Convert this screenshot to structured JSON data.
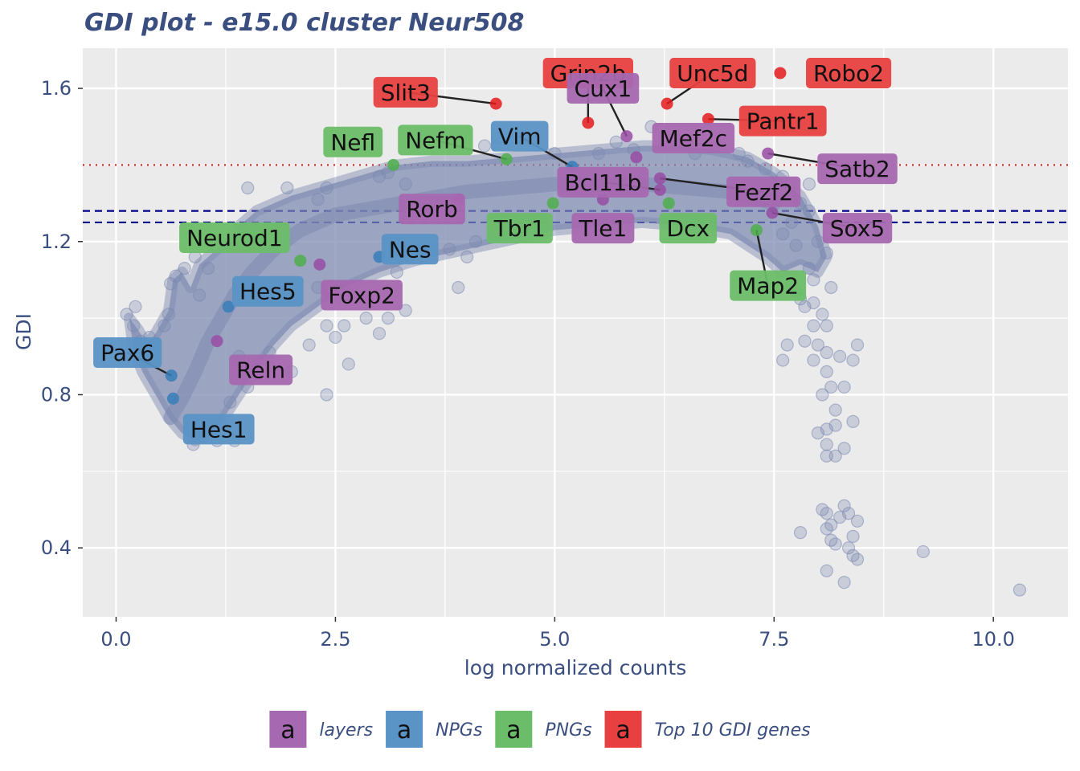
{
  "chart_data": {
    "type": "scatter",
    "title": "GDI plot - e15.0 cluster Neur508",
    "xlabel": "log normalized counts",
    "ylabel": "GDI",
    "xlim": [
      -0.38,
      10.85
    ],
    "ylim": [
      0.22,
      1.705
    ],
    "x_ticks": [
      {
        "value": 0,
        "label": "0.0"
      },
      {
        "value": 2.5,
        "label": "2.5"
      },
      {
        "value": 5,
        "label": "5.0"
      },
      {
        "value": 7.5,
        "label": "7.5"
      },
      {
        "value": 10,
        "label": "10.0"
      }
    ],
    "y_ticks": [
      {
        "value": 0.4,
        "label": "0.4"
      },
      {
        "value": 0.8,
        "label": "0.8"
      },
      {
        "value": 1.2,
        "label": "1.2"
      },
      {
        "value": 1.6,
        "label": "1.6"
      }
    ],
    "grid": true,
    "background": "#ebebeb",
    "reference_lines": [
      {
        "y": 1.4,
        "style": "dotted",
        "color": "#e41a1c"
      },
      {
        "y": 1.28,
        "style": "dashed",
        "color": "#00008b"
      },
      {
        "y": 1.25,
        "style": "dashed",
        "color": "#00008b"
      }
    ],
    "background_points": {
      "color": "#7b88b0",
      "outline": [
        [
          0.15,
          1.0
        ],
        [
          0.25,
          0.97
        ],
        [
          0.35,
          0.93
        ],
        [
          0.45,
          0.96
        ],
        [
          0.6,
          1.02
        ],
        [
          0.65,
          1.1
        ],
        [
          0.75,
          1.12
        ],
        [
          0.85,
          1.08
        ],
        [
          0.95,
          1.14
        ],
        [
          1.1,
          1.17
        ],
        [
          1.25,
          1.2
        ],
        [
          1.4,
          1.24
        ],
        [
          1.6,
          1.28
        ],
        [
          1.8,
          1.3
        ],
        [
          2.0,
          1.32
        ],
        [
          2.3,
          1.34
        ],
        [
          2.6,
          1.36
        ],
        [
          2.9,
          1.38
        ],
        [
          3.2,
          1.4
        ],
        [
          3.6,
          1.41
        ],
        [
          4.0,
          1.41
        ],
        [
          4.5,
          1.42
        ],
        [
          5.0,
          1.43
        ],
        [
          5.5,
          1.44
        ],
        [
          6.0,
          1.45
        ],
        [
          6.4,
          1.45
        ],
        [
          6.8,
          1.44
        ],
        [
          7.2,
          1.42
        ],
        [
          7.5,
          1.38
        ],
        [
          7.8,
          1.32
        ],
        [
          8.0,
          1.24
        ],
        [
          8.1,
          1.16
        ],
        [
          8.0,
          1.12
        ],
        [
          7.8,
          1.14
        ],
        [
          7.6,
          1.12
        ],
        [
          7.4,
          1.16
        ],
        [
          7.2,
          1.19
        ],
        [
          7.0,
          1.22
        ],
        [
          6.5,
          1.24
        ],
        [
          6.0,
          1.25
        ],
        [
          5.5,
          1.24
        ],
        [
          5.0,
          1.23
        ],
        [
          4.6,
          1.21
        ],
        [
          4.2,
          1.19
        ],
        [
          3.8,
          1.17
        ],
        [
          3.4,
          1.15
        ],
        [
          3.0,
          1.12
        ],
        [
          2.6,
          1.08
        ],
        [
          2.3,
          1.03
        ],
        [
          2.0,
          0.98
        ],
        [
          1.8,
          0.93
        ],
        [
          1.6,
          0.87
        ],
        [
          1.4,
          0.8
        ],
        [
          1.2,
          0.73
        ],
        [
          1.0,
          0.69
        ],
        [
          0.9,
          0.68
        ],
        [
          0.75,
          0.7
        ],
        [
          0.6,
          0.74
        ],
        [
          0.45,
          0.8
        ],
        [
          0.3,
          0.86
        ],
        [
          0.2,
          0.92
        ]
      ],
      "band": [
        [
          0.62,
          0.74
        ],
        [
          0.75,
          0.79
        ],
        [
          0.9,
          0.86
        ],
        [
          1.05,
          0.94
        ],
        [
          1.2,
          1.0
        ],
        [
          1.35,
          1.06
        ],
        [
          1.55,
          1.12
        ],
        [
          1.8,
          1.18
        ],
        [
          2.1,
          1.23
        ],
        [
          2.5,
          1.27
        ],
        [
          3.0,
          1.29
        ],
        [
          3.5,
          1.31
        ],
        [
          4.0,
          1.33
        ],
        [
          4.5,
          1.34
        ],
        [
          5.0,
          1.35
        ],
        [
          5.5,
          1.35
        ],
        [
          6.0,
          1.35
        ],
        [
          6.5,
          1.34
        ],
        [
          7.0,
          1.33
        ],
        [
          7.5,
          1.3
        ]
      ],
      "points": [
        [
          0.12,
          1.01
        ],
        [
          0.22,
          1.03
        ],
        [
          0.2,
          0.98
        ],
        [
          0.28,
          0.94
        ],
        [
          0.38,
          0.95
        ],
        [
          0.55,
          0.98
        ],
        [
          0.6,
          1.01
        ],
        [
          0.62,
          1.09
        ],
        [
          0.68,
          1.11
        ],
        [
          0.78,
          1.13
        ],
        [
          0.9,
          1.16
        ],
        [
          0.95,
          1.06
        ],
        [
          1.05,
          1.13
        ],
        [
          1.1,
          1.19
        ],
        [
          1.0,
          0.69
        ],
        [
          0.88,
          0.67
        ],
        [
          1.15,
          0.68
        ],
        [
          1.35,
          0.68
        ],
        [
          0.95,
          0.73
        ],
        [
          1.3,
          0.78
        ],
        [
          1.5,
          0.82
        ],
        [
          1.6,
          0.86
        ],
        [
          1.75,
          0.91
        ],
        [
          2.0,
          0.86
        ],
        [
          1.4,
          0.9
        ],
        [
          2.2,
          0.93
        ],
        [
          2.4,
          0.8
        ],
        [
          2.5,
          0.95
        ],
        [
          2.65,
          0.88
        ],
        [
          3.0,
          0.96
        ],
        [
          2.85,
          1.0
        ],
        [
          3.1,
          1.0
        ],
        [
          2.6,
          0.98
        ],
        [
          2.4,
          0.98
        ],
        [
          2.5,
          1.05
        ],
        [
          2.3,
          1.08
        ],
        [
          3.3,
          1.02
        ],
        [
          3.9,
          1.08
        ],
        [
          3.2,
          1.12
        ],
        [
          4.0,
          1.16
        ],
        [
          4.1,
          1.2
        ],
        [
          3.8,
          1.18
        ],
        [
          1.5,
          1.34
        ],
        [
          1.95,
          1.34
        ],
        [
          2.4,
          1.34
        ],
        [
          2.3,
          1.31
        ],
        [
          3.0,
          1.37
        ],
        [
          3.1,
          1.38
        ],
        [
          3.3,
          1.35
        ],
        [
          4.35,
          1.47
        ],
        [
          4.2,
          1.45
        ],
        [
          5.0,
          1.43
        ],
        [
          5.5,
          1.43
        ],
        [
          5.7,
          1.46
        ],
        [
          5.9,
          1.44
        ],
        [
          6.1,
          1.5
        ],
        [
          6.3,
          1.46
        ],
        [
          6.6,
          1.43
        ],
        [
          7.1,
          1.43
        ],
        [
          7.2,
          1.41
        ],
        [
          7.4,
          1.39
        ],
        [
          7.6,
          1.37
        ],
        [
          7.9,
          1.35
        ],
        [
          7.8,
          1.3
        ],
        [
          7.9,
          1.28
        ],
        [
          7.7,
          1.25
        ],
        [
          7.6,
          1.22
        ],
        [
          7.75,
          1.19
        ],
        [
          8.0,
          1.2
        ],
        [
          8.1,
          1.17
        ],
        [
          7.9,
          1.13
        ],
        [
          7.95,
          1.1
        ],
        [
          8.15,
          1.08
        ],
        [
          7.7,
          1.09
        ],
        [
          7.75,
          1.07
        ],
        [
          7.8,
          1.05
        ],
        [
          7.85,
          1.03
        ],
        [
          7.95,
          1.04
        ],
        [
          8.05,
          1.01
        ],
        [
          8.1,
          0.98
        ],
        [
          7.95,
          0.98
        ],
        [
          7.85,
          0.94
        ],
        [
          7.65,
          0.93
        ],
        [
          7.6,
          0.89
        ],
        [
          8.0,
          0.93
        ],
        [
          8.1,
          0.91
        ],
        [
          8.25,
          0.9
        ],
        [
          8.45,
          0.93
        ],
        [
          8.4,
          0.89
        ],
        [
          8.1,
          0.86
        ],
        [
          7.95,
          0.89
        ],
        [
          8.15,
          0.82
        ],
        [
          8.05,
          0.8
        ],
        [
          8.3,
          0.82
        ],
        [
          8.2,
          0.76
        ],
        [
          8.4,
          0.73
        ],
        [
          8.1,
          0.71
        ],
        [
          8.2,
          0.72
        ],
        [
          8.0,
          0.7
        ],
        [
          8.1,
          0.67
        ],
        [
          8.3,
          0.66
        ],
        [
          8.2,
          0.64
        ],
        [
          8.1,
          0.64
        ],
        [
          7.8,
          0.44
        ],
        [
          8.05,
          0.5
        ],
        [
          8.1,
          0.49
        ],
        [
          8.15,
          0.46
        ],
        [
          8.25,
          0.48
        ],
        [
          8.35,
          0.49
        ],
        [
          8.3,
          0.51
        ],
        [
          8.45,
          0.47
        ],
        [
          8.1,
          0.45
        ],
        [
          8.15,
          0.42
        ],
        [
          8.2,
          0.41
        ],
        [
          8.4,
          0.43
        ],
        [
          8.35,
          0.4
        ],
        [
          8.1,
          0.34
        ],
        [
          8.4,
          0.38
        ],
        [
          8.45,
          0.37
        ],
        [
          8.3,
          0.31
        ],
        [
          9.2,
          0.39
        ],
        [
          10.3,
          0.29
        ]
      ]
    },
    "highlighted_genes": [
      {
        "gene": "Grin2b",
        "x": 5.38,
        "y": 1.51,
        "group": "Top 10 GDI genes"
      },
      {
        "gene": "Slit3",
        "x": 4.33,
        "y": 1.56,
        "group": "Top 10 GDI genes"
      },
      {
        "gene": "Unc5d",
        "x": 6.28,
        "y": 1.56,
        "group": "Top 10 GDI genes"
      },
      {
        "gene": "Robo2",
        "x": 7.57,
        "y": 1.64,
        "group": "Top 10 GDI genes"
      },
      {
        "gene": "Pantr1",
        "x": 6.75,
        "y": 1.52,
        "group": "Top 10 GDI genes"
      },
      {
        "gene": "Cux1",
        "x": 5.82,
        "y": 1.475,
        "group": "layers"
      },
      {
        "gene": "Mef2c",
        "x": 5.93,
        "y": 1.42,
        "group": "layers"
      },
      {
        "gene": "Satb2",
        "x": 7.43,
        "y": 1.43,
        "group": "layers"
      },
      {
        "gene": "Fezf2",
        "x": 6.2,
        "y": 1.365,
        "group": "layers"
      },
      {
        "gene": "Bcl11b",
        "x": 6.2,
        "y": 1.335,
        "group": "layers"
      },
      {
        "gene": "Tle1",
        "x": 5.55,
        "y": 1.31,
        "group": "layers"
      },
      {
        "gene": "Rorb",
        "x": 3.9,
        "y": 1.31,
        "group": "layers"
      },
      {
        "gene": "Sox5",
        "x": 7.48,
        "y": 1.275,
        "group": "layers"
      },
      {
        "gene": "Foxp2",
        "x": 2.32,
        "y": 1.14,
        "group": "layers"
      },
      {
        "gene": "Reln",
        "x": 1.15,
        "y": 0.94,
        "group": "layers"
      },
      {
        "gene": "Vim",
        "x": 5.2,
        "y": 1.395,
        "group": "NPGs"
      },
      {
        "gene": "Nes",
        "x": 3.0,
        "y": 1.16,
        "group": "NPGs"
      },
      {
        "gene": "Hes5",
        "x": 1.28,
        "y": 1.03,
        "group": "NPGs"
      },
      {
        "gene": "Pax6",
        "x": 0.63,
        "y": 0.85,
        "group": "NPGs"
      },
      {
        "gene": "Hes1",
        "x": 0.65,
        "y": 0.79,
        "group": "NPGs"
      },
      {
        "gene": "Nefl",
        "x": 3.16,
        "y": 1.4,
        "group": "PNGs"
      },
      {
        "gene": "Nefm",
        "x": 4.45,
        "y": 1.415,
        "group": "PNGs"
      },
      {
        "gene": "Tbr1",
        "x": 4.98,
        "y": 1.3,
        "group": "PNGs"
      },
      {
        "gene": "Dcx",
        "x": 6.3,
        "y": 1.3,
        "group": "PNGs"
      },
      {
        "gene": "Neurod1",
        "x": 2.1,
        "y": 1.15,
        "group": "PNGs"
      },
      {
        "gene": "Map2",
        "x": 7.3,
        "y": 1.23,
        "group": "PNGs"
      }
    ],
    "gene_labels": [
      {
        "gene": "Grin2b",
        "lx": 5.38,
        "ly": 1.64,
        "leader": true
      },
      {
        "gene": "Slit3",
        "lx": 3.3,
        "ly": 1.59,
        "leader": true
      },
      {
        "gene": "Unc5d",
        "lx": 6.8,
        "ly": 1.64,
        "leader": true
      },
      {
        "gene": "Robo2",
        "lx": 8.35,
        "ly": 1.64,
        "leader": false
      },
      {
        "gene": "Pantr1",
        "lx": 7.6,
        "ly": 1.515,
        "leader": true
      },
      {
        "gene": "Cux1",
        "lx": 5.55,
        "ly": 1.6,
        "leader": true
      },
      {
        "gene": "Mef2c",
        "lx": 6.58,
        "ly": 1.47,
        "leader": false
      },
      {
        "gene": "Satb2",
        "lx": 8.45,
        "ly": 1.39,
        "leader": true
      },
      {
        "gene": "Fezf2",
        "lx": 7.38,
        "ly": 1.33,
        "leader": true
      },
      {
        "gene": "Bcl11b",
        "lx": 5.55,
        "ly": 1.355,
        "leader": true
      },
      {
        "gene": "Tle1",
        "lx": 5.55,
        "ly": 1.235,
        "leader": false
      },
      {
        "gene": "Rorb",
        "lx": 3.6,
        "ly": 1.285,
        "leader": false
      },
      {
        "gene": "Sox5",
        "lx": 8.45,
        "ly": 1.235,
        "leader": true
      },
      {
        "gene": "Foxp2",
        "lx": 2.8,
        "ly": 1.06,
        "leader": false
      },
      {
        "gene": "Reln",
        "lx": 1.65,
        "ly": 0.865,
        "leader": false
      },
      {
        "gene": "Vim",
        "lx": 4.6,
        "ly": 1.475,
        "leader": true
      },
      {
        "gene": "Nes",
        "lx": 3.35,
        "ly": 1.18,
        "leader": false
      },
      {
        "gene": "Hes5",
        "lx": 1.73,
        "ly": 1.07,
        "leader": false
      },
      {
        "gene": "Pax6",
        "lx": 0.13,
        "ly": 0.91,
        "leader": true
      },
      {
        "gene": "Hes1",
        "lx": 1.17,
        "ly": 0.71,
        "leader": false
      },
      {
        "gene": "Nefl",
        "lx": 2.7,
        "ly": 1.46,
        "leader": false
      },
      {
        "gene": "Nefm",
        "lx": 3.64,
        "ly": 1.465,
        "leader": true
      },
      {
        "gene": "Tbr1",
        "lx": 4.6,
        "ly": 1.235,
        "leader": false
      },
      {
        "gene": "Dcx",
        "lx": 6.52,
        "ly": 1.235,
        "leader": false
      },
      {
        "gene": "Neurod1",
        "lx": 1.35,
        "ly": 1.21,
        "leader": false
      },
      {
        "gene": "Map2",
        "lx": 7.43,
        "ly": 1.085,
        "leader": true
      }
    ],
    "groups": {
      "layers": {
        "point_color": "#984ea3",
        "label_color": "#a668b0"
      },
      "NPGs": {
        "point_color": "#377eb8",
        "label_color": "#5a93c6"
      },
      "PNGs": {
        "point_color": "#4daf4a",
        "label_color": "#6cbd69"
      },
      "Top 10 GDI genes": {
        "point_color": "#e41a1c",
        "label_color": "#e84040"
      }
    },
    "legend": {
      "position": "bottom",
      "key_glyph": "a",
      "items": [
        {
          "label": "layers",
          "color": "#a668b0"
        },
        {
          "label": "NPGs",
          "color": "#5a93c6"
        },
        {
          "label": "PNGs",
          "color": "#6cbd69"
        },
        {
          "label": "Top 10 GDI genes",
          "color": "#e84040"
        }
      ]
    }
  }
}
